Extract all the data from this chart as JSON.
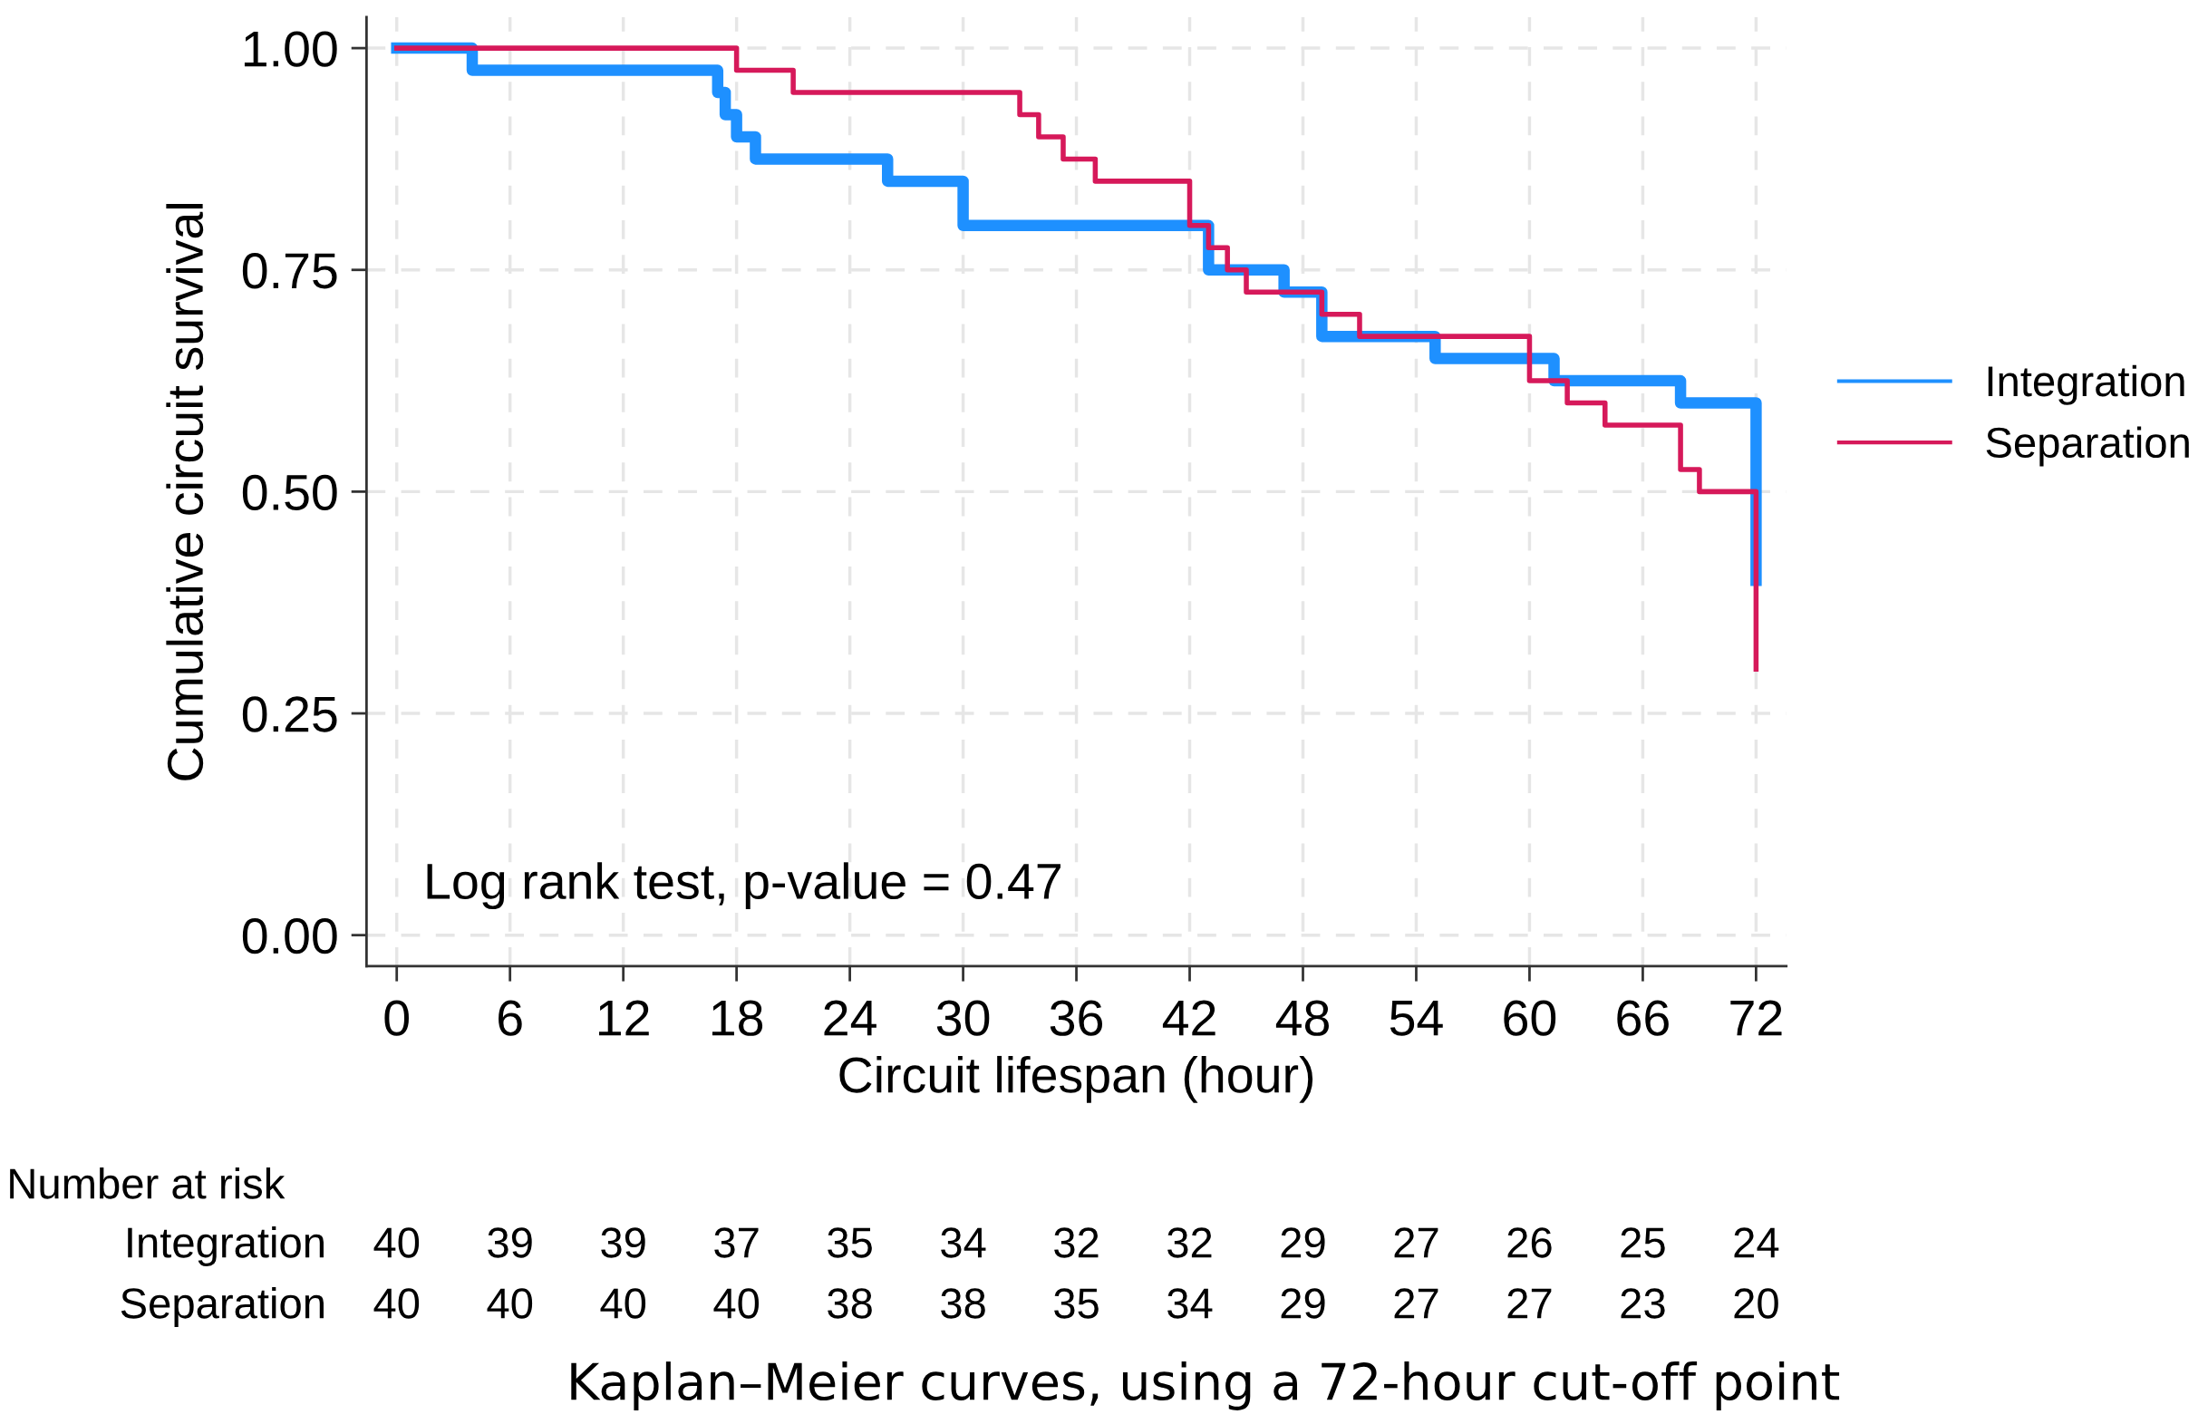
{
  "chart_data": {
    "type": "step",
    "xlabel": "Circuit lifespan (hour)",
    "ylabel": "Cumulative circuit survival",
    "xlim": [
      -1.6,
      73.6
    ],
    "ylim": [
      -0.035,
      1.035
    ],
    "xticks": [
      0,
      6,
      12,
      18,
      24,
      30,
      36,
      42,
      48,
      54,
      60,
      66,
      72
    ],
    "yticks": [
      {
        "value": 0,
        "label": "0.00"
      },
      {
        "value": 0.25,
        "label": "0.25"
      },
      {
        "value": 0.5,
        "label": "0.50"
      },
      {
        "value": 0.75,
        "label": "0.75"
      },
      {
        "value": 1,
        "label": "1.00"
      }
    ],
    "grid": true,
    "legend": "right",
    "line_style": "solid",
    "marker": "none",
    "series": [
      {
        "name": "Integration",
        "color": "#1e90ff",
        "x": [
          0,
          4,
          17,
          17.4,
          18,
          19,
          26,
          30,
          43,
          47,
          49,
          55,
          61.3,
          68,
          72,
          72
        ],
        "values": [
          1,
          0.975,
          0.95,
          0.925,
          0.9,
          0.875,
          0.85,
          0.8,
          0.75,
          0.725,
          0.675,
          0.65,
          0.625,
          0.6,
          0.5,
          0.4
        ]
      },
      {
        "name": "Separation",
        "color": "#d6195a",
        "x": [
          0,
          18,
          21,
          33,
          34,
          35.3,
          37,
          42,
          43,
          44,
          45,
          49,
          51,
          60,
          62,
          64,
          68,
          69,
          72
        ],
        "values": [
          1,
          0.975,
          0.95,
          0.925,
          0.9,
          0.875,
          0.85,
          0.8,
          0.775,
          0.75,
          0.725,
          0.7,
          0.675,
          0.625,
          0.6,
          0.575,
          0.525,
          0.5,
          0.3
        ]
      }
    ],
    "annotations": [
      "Log rank test, p-value = 0.47",
      "Number at risk",
      "Integration 40 39 39 37 35 34 32 32 29 27 26 25 24",
      "Separation 40 40 40 40 38 38 35 34 29 27 27 23 20",
      "Kaplan–Meier curves, using a 72-hour cut-off point"
    ]
  }
}
